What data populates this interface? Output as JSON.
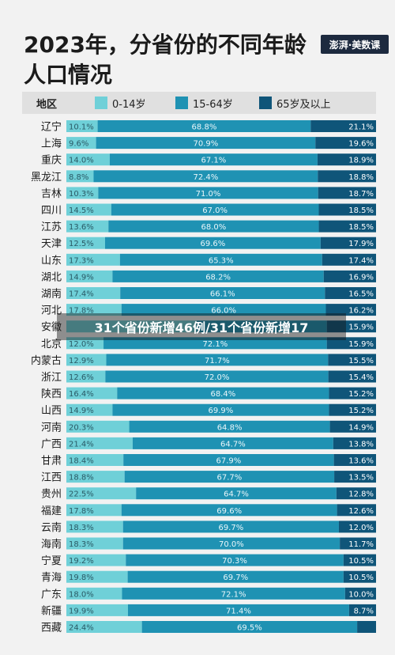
{
  "header": {
    "title_line1": "2023年，分省份的不同年龄",
    "title_line2": "人口情况",
    "logo_text": "澎湃·美数课"
  },
  "legend": {
    "label": "地区",
    "items": [
      "0-14岁",
      "15-64岁",
      "65岁及以上"
    ]
  },
  "overlay_text": "31个省份新增46例/31个省份新增17",
  "colors": {
    "young": "#6fd0d8",
    "working": "#1f92b3",
    "old": "#0f5579",
    "bg": "#f2f2f2",
    "legend_bg": "#e0e0e0"
  },
  "chart_data": {
    "type": "bar",
    "orientation": "horizontal",
    "stacked": true,
    "categories": [
      "辽宁",
      "上海",
      "重庆",
      "黑龙江",
      "吉林",
      "四川",
      "江苏",
      "天津",
      "山东",
      "湖北",
      "湖南",
      "河北",
      "安徽",
      "北京",
      "内蒙古",
      "浙江",
      "陕西",
      "山西",
      "河南",
      "广西",
      "甘肃",
      "江西",
      "贵州",
      "福建",
      "云南",
      "海南",
      "宁夏",
      "青海",
      "广东",
      "新疆",
      "西藏"
    ],
    "series": [
      {
        "name": "0-14岁",
        "values": [
          10.1,
          9.6,
          14.0,
          8.8,
          10.3,
          14.5,
          13.6,
          12.5,
          17.3,
          14.9,
          17.4,
          17.8,
          null,
          12.0,
          12.9,
          12.6,
          16.4,
          14.9,
          20.3,
          21.4,
          18.4,
          18.8,
          22.5,
          17.8,
          18.3,
          18.3,
          19.2,
          19.8,
          18.0,
          19.9,
          24.4
        ]
      },
      {
        "name": "15-64岁",
        "values": [
          68.8,
          70.9,
          67.1,
          72.4,
          71.0,
          67.0,
          68.0,
          69.6,
          65.3,
          68.2,
          66.1,
          66.0,
          null,
          72.1,
          71.7,
          72.0,
          68.4,
          69.9,
          64.8,
          64.7,
          67.9,
          67.7,
          64.7,
          69.6,
          69.7,
          70.0,
          70.3,
          69.7,
          72.1,
          71.4,
          69.5
        ]
      },
      {
        "name": "65岁及以上",
        "values": [
          21.1,
          19.6,
          18.9,
          18.8,
          18.7,
          18.5,
          18.5,
          17.9,
          17.4,
          16.9,
          16.5,
          16.2,
          15.9,
          15.9,
          15.5,
          15.4,
          15.2,
          15.2,
          14.9,
          13.8,
          13.6,
          13.5,
          12.8,
          12.6,
          12.0,
          11.7,
          10.5,
          10.5,
          10.0,
          8.7,
          null
        ]
      }
    ],
    "xlim": [
      0,
      100
    ]
  }
}
